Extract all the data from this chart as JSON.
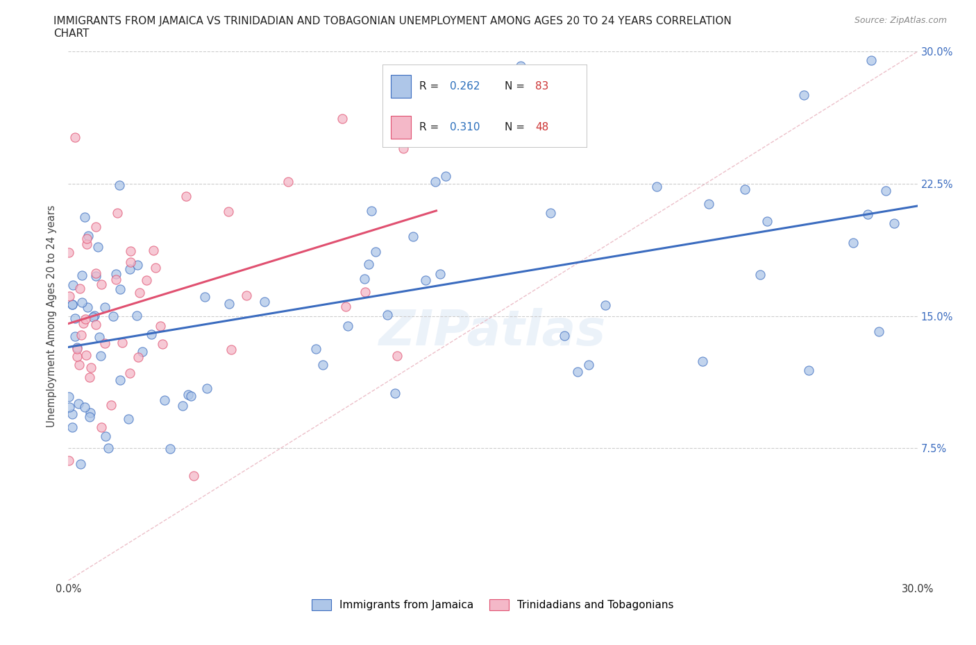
{
  "title_line1": "IMMIGRANTS FROM JAMAICA VS TRINIDADIAN AND TOBAGONIAN UNEMPLOYMENT AMONG AGES 20 TO 24 YEARS CORRELATION",
  "title_line2": "CHART",
  "source": "Source: ZipAtlas.com",
  "ylabel": "Unemployment Among Ages 20 to 24 years",
  "xlim": [
    0.0,
    0.3
  ],
  "ylim": [
    0.0,
    0.3
  ],
  "color_jamaica": "#aec6e8",
  "color_trinidad": "#f4b8c8",
  "color_jamaica_line": "#3a6bbf",
  "color_trinidad_line": "#e05070",
  "color_diag": "#e0b0b8",
  "watermark": "ZIPatlas",
  "jamaica_seed": 42,
  "trinidad_seed": 99
}
